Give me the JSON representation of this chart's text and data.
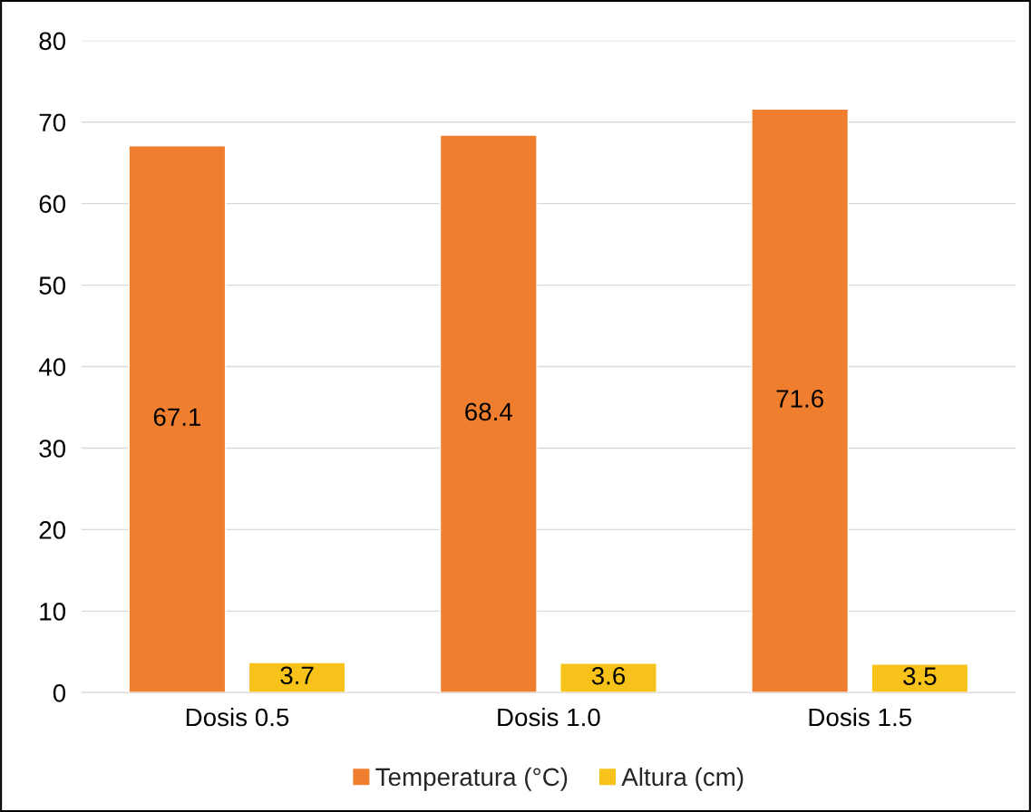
{
  "chart_data": {
    "type": "bar",
    "categories": [
      "Dosis 0.5",
      "Dosis 1.0",
      "Dosis 1.5"
    ],
    "series": [
      {
        "name": "Temperatura (°C)",
        "color": "#ef7f2f",
        "values": [
          67.1,
          68.4,
          71.6
        ]
      },
      {
        "name": "Altura (cm)",
        "color": "#f7c21a",
        "values": [
          3.7,
          3.6,
          3.5
        ]
      }
    ],
    "ylim": [
      0,
      80
    ],
    "yticks": [
      0,
      10,
      20,
      30,
      40,
      50,
      60,
      70,
      80
    ],
    "grid": "y",
    "legend": "bottom",
    "data_labels": true
  }
}
